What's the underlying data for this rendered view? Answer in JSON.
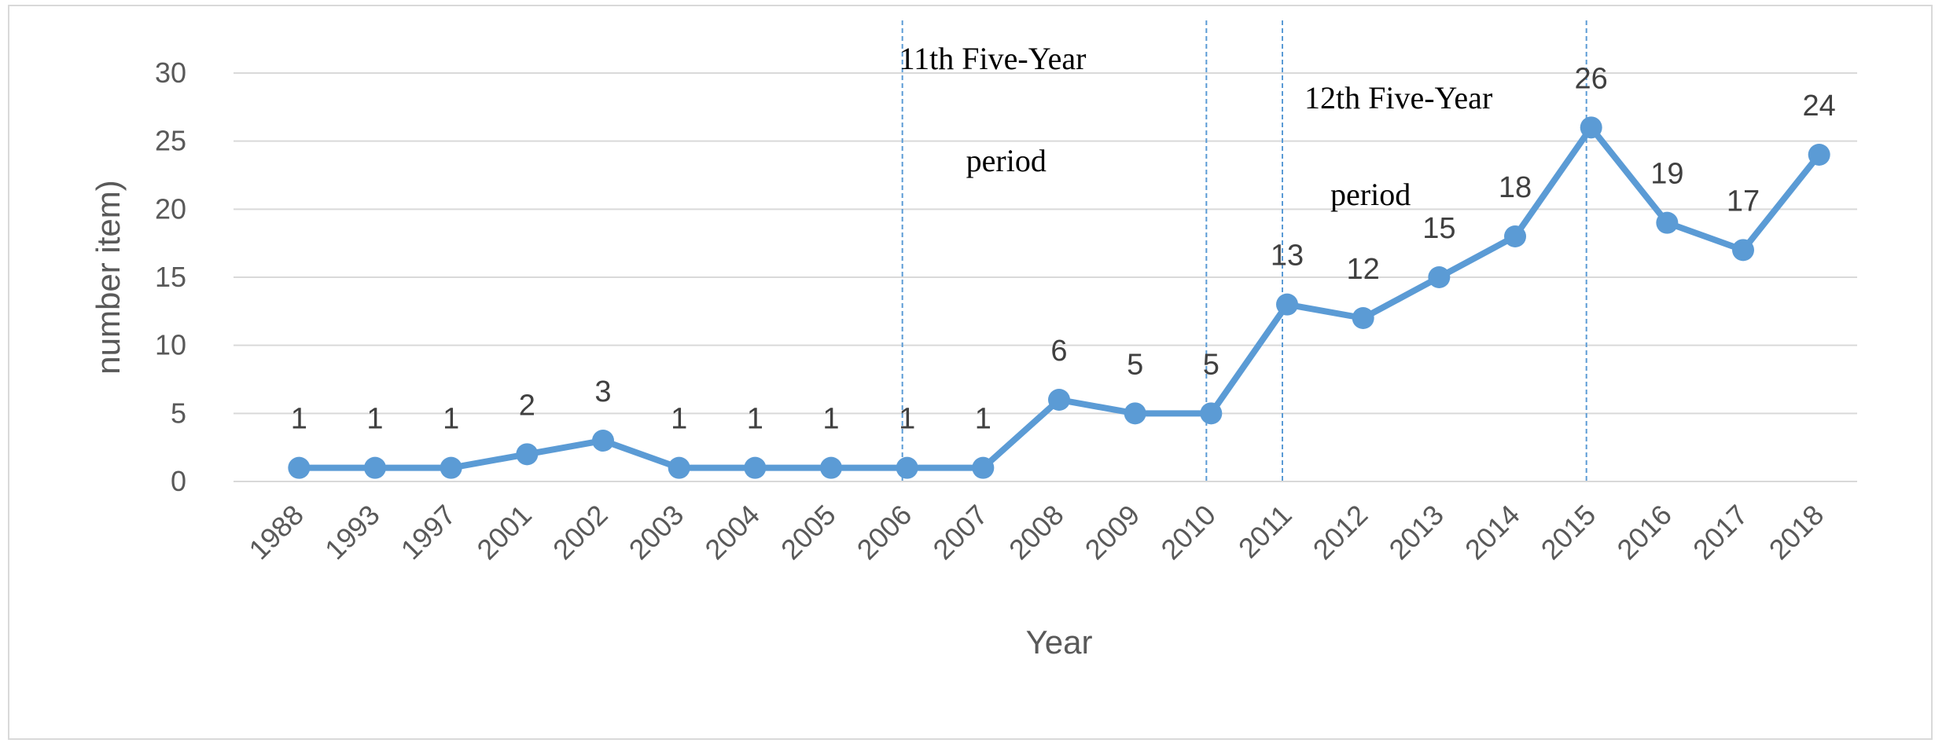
{
  "chart_data": {
    "type": "line",
    "categories": [
      "1988",
      "1993",
      "1997",
      "2001",
      "2002",
      "2003",
      "2004",
      "2005",
      "2006",
      "2007",
      "2008",
      "2009",
      "2010",
      "2011",
      "2012",
      "2013",
      "2014",
      "2015",
      "2016",
      "2017",
      "2018"
    ],
    "series": [
      {
        "values": [
          1,
          1,
          1,
          2,
          3,
          1,
          1,
          1,
          1,
          1,
          6,
          5,
          5,
          13,
          12,
          15,
          18,
          26,
          19,
          17,
          24
        ]
      }
    ],
    "xlabel": "Year",
    "ylabel": "number item)",
    "ylim": [
      0,
      30
    ],
    "yticks": [
      0,
      5,
      10,
      15,
      20,
      25,
      30
    ],
    "grid": true,
    "series_color": "#5b9bd5",
    "grid_color": "#d9d9d9",
    "period_line_color": "#5b9bd5",
    "period_markers": [
      "2006",
      "2010",
      "2011",
      "2015"
    ],
    "annotations": [
      {
        "line1": "11th Five-Year",
        "line2": "period",
        "at": [
          "2006",
          "2010"
        ]
      },
      {
        "line1": "12th Five-Year",
        "line2": "period",
        "at": [
          "2011",
          "2015"
        ]
      }
    ]
  }
}
